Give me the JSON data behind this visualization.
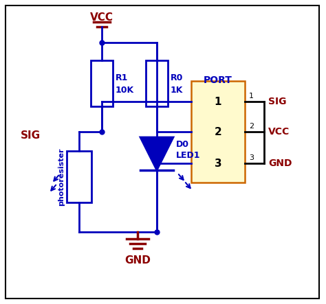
{
  "figsize": [
    4.74,
    4.43
  ],
  "dpi": 100,
  "bg_color": "#ffffff",
  "blue": "#0000bb",
  "dark_red": "#8b0000",
  "gold": "#fffacd",
  "gold_border": "#cc6600",
  "black": "#000000",
  "vcc_label": "VCC",
  "gnd_label": "GND",
  "sig_label": "SIG",
  "port_label": "PORT",
  "r1_label": "R1",
  "r1_val": "10K",
  "r0_label": "R0",
  "r0_val": "1K",
  "d0_label": "D0",
  "led_label": "LED1",
  "photo_label": "photoresister",
  "pin1_label": "SIG",
  "pin2_label": "VCC",
  "pin3_label": "GND"
}
